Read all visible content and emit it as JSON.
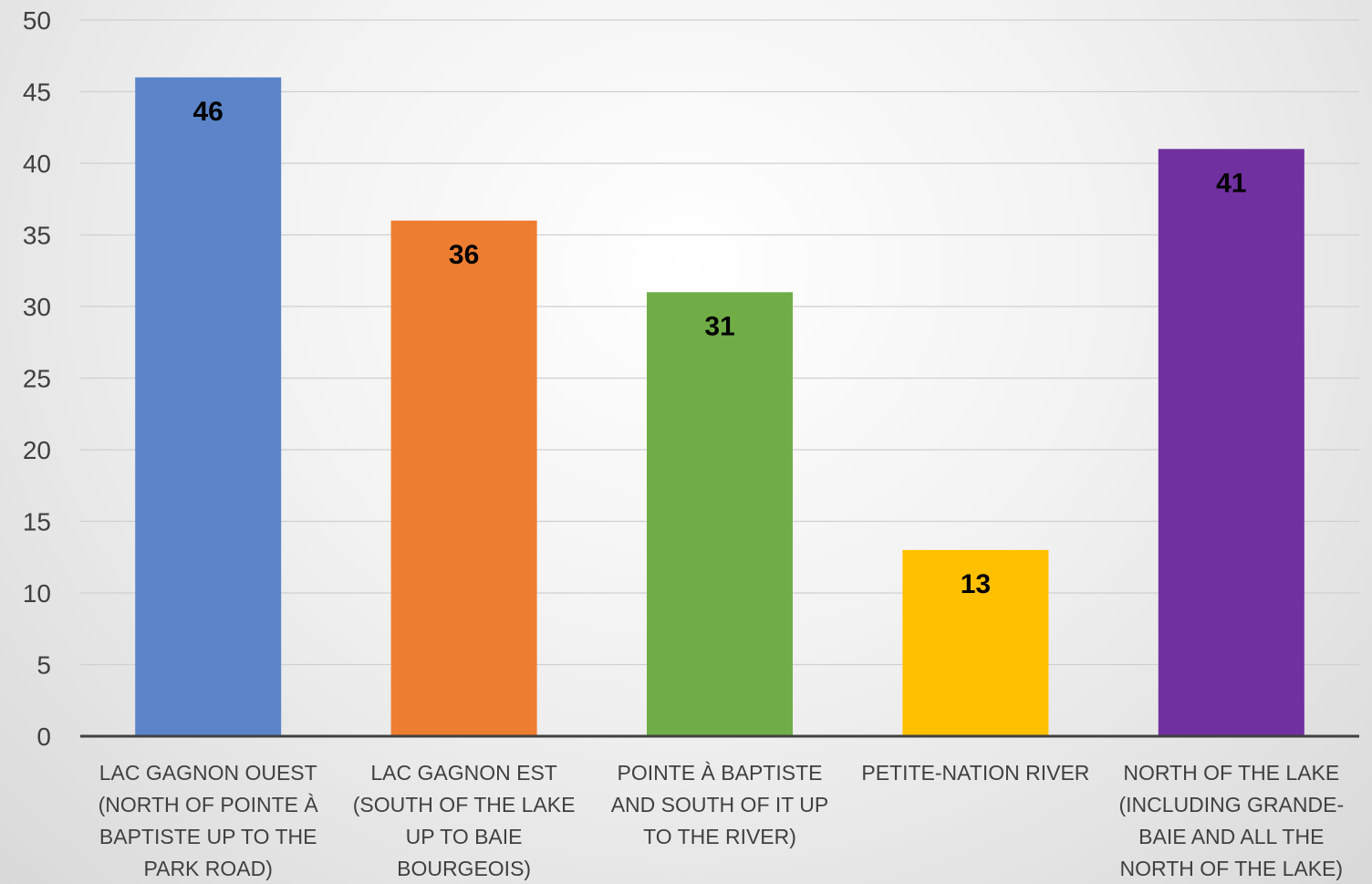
{
  "chart_data": {
    "type": "bar",
    "categories": [
      [
        "LAC GAGNON OUEST",
        "(NORTH OF POINTE À",
        "BAPTISTE UP TO THE",
        "PARK ROAD)"
      ],
      [
        "LAC GAGNON EST",
        "(SOUTH OF THE LAKE",
        "UP TO BAIE",
        "BOURGEOIS)"
      ],
      [
        "POINTE À BAPTISTE",
        "AND SOUTH OF IT UP",
        "TO THE RIVER)"
      ],
      [
        "PETITE-NATION RIVER"
      ],
      [
        "NORTH OF THE LAKE",
        "(INCLUDING GRANDE-",
        "BAIE AND ALL THE",
        "NORTH OF THE LAKE)"
      ]
    ],
    "values": [
      46,
      36,
      31,
      13,
      41
    ],
    "data_labels": [
      "46",
      "36",
      "31",
      "13",
      "41"
    ],
    "colors": [
      "#5b84c9",
      "#ed7d31",
      "#70ad47",
      "#ffc000",
      "#7030a0"
    ],
    "ylim": [
      0,
      50
    ],
    "yticks": [
      "0",
      "5",
      "10",
      "15",
      "20",
      "25",
      "30",
      "35",
      "40",
      "45",
      "50"
    ],
    "grid": true,
    "legend": "none",
    "title": "",
    "xlabel": "",
    "ylabel": ""
  }
}
